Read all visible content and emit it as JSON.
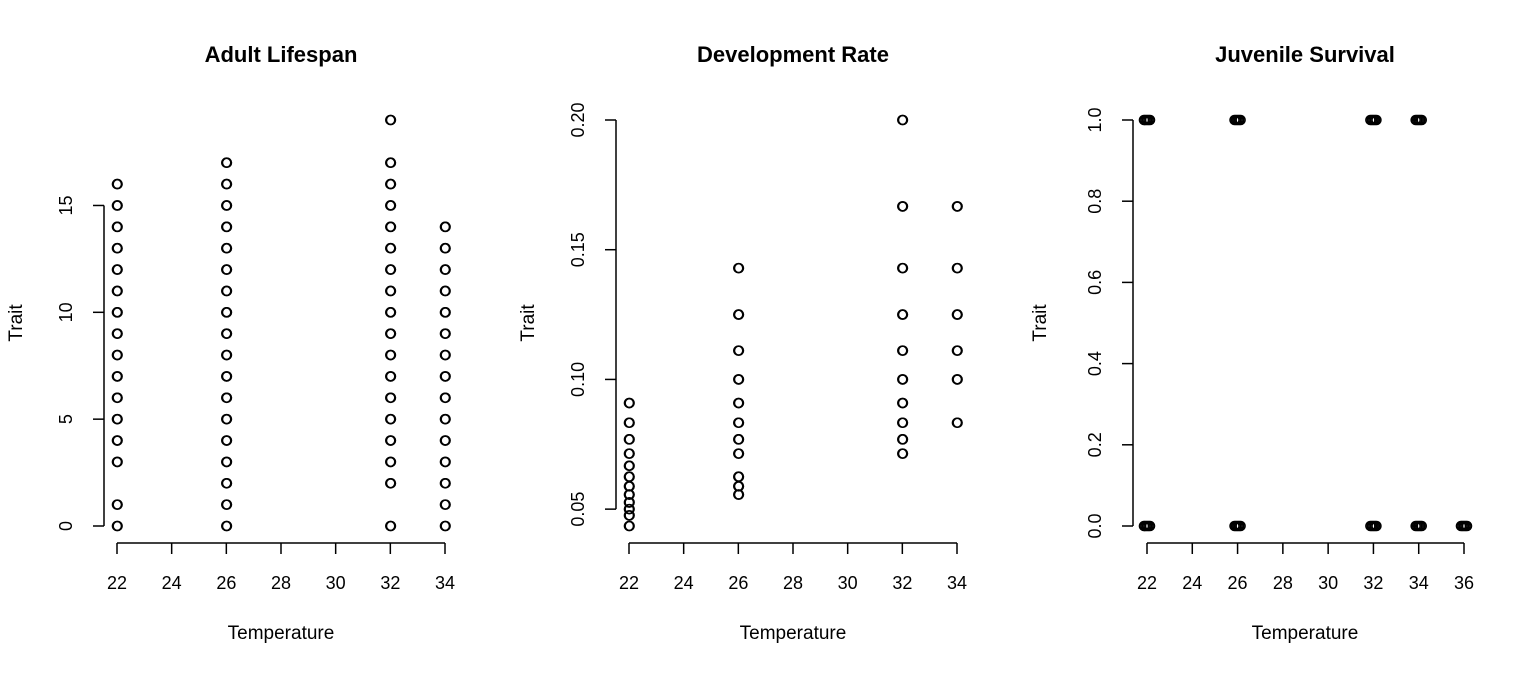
{
  "chart_data": [
    {
      "type": "scatter",
      "title": "Adult Lifespan",
      "xlabel": "Temperature",
      "ylabel": "Trait",
      "xlim": [
        21.5,
        34.5
      ],
      "ylim": [
        0,
        19
      ],
      "xticks": [
        22,
        24,
        26,
        28,
        30,
        32,
        34
      ],
      "yticks": [
        0,
        5,
        10,
        15
      ],
      "x_tick_labels": [
        "22",
        "24",
        "26",
        "28",
        "30",
        "32",
        "34"
      ],
      "y_tick_labels": [
        "0",
        "5",
        "10",
        "15"
      ],
      "series": [
        {
          "marker": "open-circle",
          "points": [
            {
              "x": 22,
              "y": [
                0,
                1,
                3,
                4,
                5,
                6,
                7,
                8,
                9,
                10,
                11,
                12,
                13,
                14,
                15,
                16
              ]
            },
            {
              "x": 26,
              "y": [
                0,
                1,
                2,
                3,
                4,
                5,
                6,
                7,
                8,
                9,
                10,
                11,
                12,
                13,
                14,
                15,
                16,
                17
              ]
            },
            {
              "x": 32,
              "y": [
                0,
                2,
                3,
                4,
                5,
                6,
                7,
                8,
                9,
                10,
                11,
                12,
                13,
                14,
                15,
                16,
                17,
                19
              ]
            },
            {
              "x": 34,
              "y": [
                0,
                1,
                2,
                3,
                4,
                5,
                6,
                7,
                8,
                9,
                10,
                11,
                12,
                13,
                14
              ]
            }
          ]
        }
      ]
    },
    {
      "type": "scatter",
      "title": "Development Rate",
      "xlabel": "Temperature",
      "ylabel": "Trait",
      "xlim": [
        21.5,
        34.5
      ],
      "ylim": [
        0.0435,
        0.2
      ],
      "xticks": [
        22,
        24,
        26,
        28,
        30,
        32,
        34
      ],
      "yticks": [
        0.05,
        0.1,
        0.15,
        0.2
      ],
      "x_tick_labels": [
        "22",
        "24",
        "26",
        "28",
        "30",
        "32",
        "34"
      ],
      "y_tick_labels": [
        "0.05",
        "0.10",
        "0.15",
        "0.20"
      ],
      "series": [
        {
          "marker": "open-circle",
          "points": [
            {
              "x": 22,
              "y": [
                0.0435,
                0.0476,
                0.05,
                0.0526,
                0.0556,
                0.0588,
                0.0625,
                0.0667,
                0.0714,
                0.0769,
                0.0833,
                0.0909
              ]
            },
            {
              "x": 26,
              "y": [
                0.0556,
                0.0588,
                0.0625,
                0.0714,
                0.0769,
                0.0833,
                0.0909,
                0.1,
                0.1111,
                0.125,
                0.1429
              ]
            },
            {
              "x": 32,
              "y": [
                0.0714,
                0.0769,
                0.0833,
                0.0909,
                0.1,
                0.1111,
                0.125,
                0.1429,
                0.1667,
                0.2
              ]
            },
            {
              "x": 34,
              "y": [
                0.0833,
                0.1,
                0.1111,
                0.125,
                0.1429,
                0.1667
              ]
            }
          ]
        }
      ]
    },
    {
      "type": "scatter",
      "title": "Juvenile Survival",
      "xlabel": "Temperature",
      "ylabel": "Trait",
      "xlim": [
        21.5,
        36.5
      ],
      "ylim": [
        0,
        1
      ],
      "xticks": [
        22,
        24,
        26,
        28,
        30,
        32,
        34,
        36
      ],
      "yticks": [
        0,
        0.2,
        0.4,
        0.6,
        0.8,
        1
      ],
      "x_tick_labels": [
        "22",
        "24",
        "26",
        "28",
        "30",
        "32",
        "34",
        "36"
      ],
      "y_tick_labels": [
        "0.0",
        "0.2",
        "0.4",
        "0.6",
        "0.8",
        "1.0"
      ],
      "series": [
        {
          "marker": "open-circle",
          "points": [
            {
              "x": 22,
              "y": [
                0,
                1
              ]
            },
            {
              "x": 26,
              "y": [
                0,
                1
              ]
            },
            {
              "x": 32,
              "y": [
                0,
                1
              ]
            },
            {
              "x": 34,
              "y": [
                0,
                1
              ]
            },
            {
              "x": 36,
              "y": [
                0
              ]
            }
          ]
        }
      ]
    }
  ]
}
